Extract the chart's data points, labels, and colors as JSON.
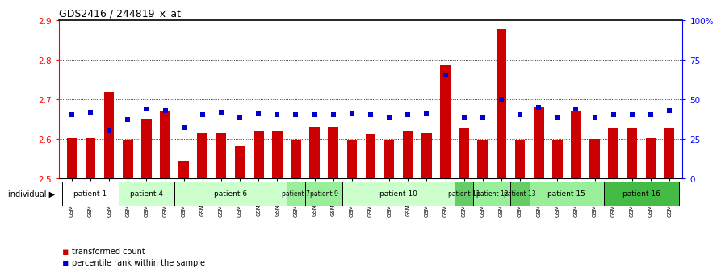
{
  "title": "GDS2416 / 244819_x_at",
  "samples": [
    "GSM135233",
    "GSM135234",
    "GSM135260",
    "GSM135232",
    "GSM135235",
    "GSM135236",
    "GSM135231",
    "GSM135242",
    "GSM135243",
    "GSM135251",
    "GSM135252",
    "GSM135244",
    "GSM135259",
    "GSM135254",
    "GSM135255",
    "GSM135261",
    "GSM135229",
    "GSM135230",
    "GSM135245",
    "GSM135246",
    "GSM135258",
    "GSM135247",
    "GSM135250",
    "GSM135237",
    "GSM135238",
    "GSM135239",
    "GSM135256",
    "GSM135257",
    "GSM135240",
    "GSM135248",
    "GSM135253",
    "GSM135241",
    "GSM135249"
  ],
  "bar_values": [
    2.601,
    2.601,
    2.718,
    2.596,
    2.648,
    2.67,
    2.543,
    2.614,
    2.614,
    2.582,
    2.62,
    2.62,
    2.596,
    2.63,
    2.63,
    2.596,
    2.613,
    2.596,
    2.62,
    2.614,
    2.785,
    2.628,
    2.597,
    2.876,
    2.596,
    2.68,
    2.595,
    2.669,
    2.6,
    2.628,
    2.628,
    2.601,
    2.628
  ],
  "percentile_values": [
    40,
    42,
    30,
    37,
    44,
    43,
    32,
    40,
    42,
    38,
    41,
    40,
    40,
    40,
    40,
    41,
    40,
    38,
    40,
    41,
    65,
    38,
    38,
    50,
    40,
    45,
    38,
    44,
    38,
    40,
    40,
    40,
    43
  ],
  "patients": [
    {
      "label": "patient 1",
      "start": 0,
      "end": 2,
      "color": "#ffffff"
    },
    {
      "label": "patient 4",
      "start": 3,
      "end": 5,
      "color": "#ccffcc"
    },
    {
      "label": "patient 6",
      "start": 6,
      "end": 11,
      "color": "#ccffcc"
    },
    {
      "label": "patient 7",
      "start": 12,
      "end": 12,
      "color": "#99ee99"
    },
    {
      "label": "patient 9",
      "start": 13,
      "end": 14,
      "color": "#99ee99"
    },
    {
      "label": "patient 10",
      "start": 15,
      "end": 20,
      "color": "#ccffcc"
    },
    {
      "label": "patient 11",
      "start": 21,
      "end": 21,
      "color": "#66cc66"
    },
    {
      "label": "patient 12",
      "start": 22,
      "end": 23,
      "color": "#99ee99"
    },
    {
      "label": "patient 13",
      "start": 24,
      "end": 24,
      "color": "#66cc66"
    },
    {
      "label": "patient 15",
      "start": 25,
      "end": 28,
      "color": "#99ee99"
    },
    {
      "label": "patient 16",
      "start": 29,
      "end": 32,
      "color": "#44bb44"
    }
  ],
  "ylim": [
    2.5,
    2.9
  ],
  "yticks_left": [
    2.5,
    2.6,
    2.7,
    2.8,
    2.9
  ],
  "yticks_right": [
    0,
    25,
    50,
    75,
    100
  ],
  "right_ylabels": [
    "0",
    "25",
    "50",
    "75",
    "100%"
  ],
  "bar_color": "#cc0000",
  "percentile_color": "#0000cc"
}
